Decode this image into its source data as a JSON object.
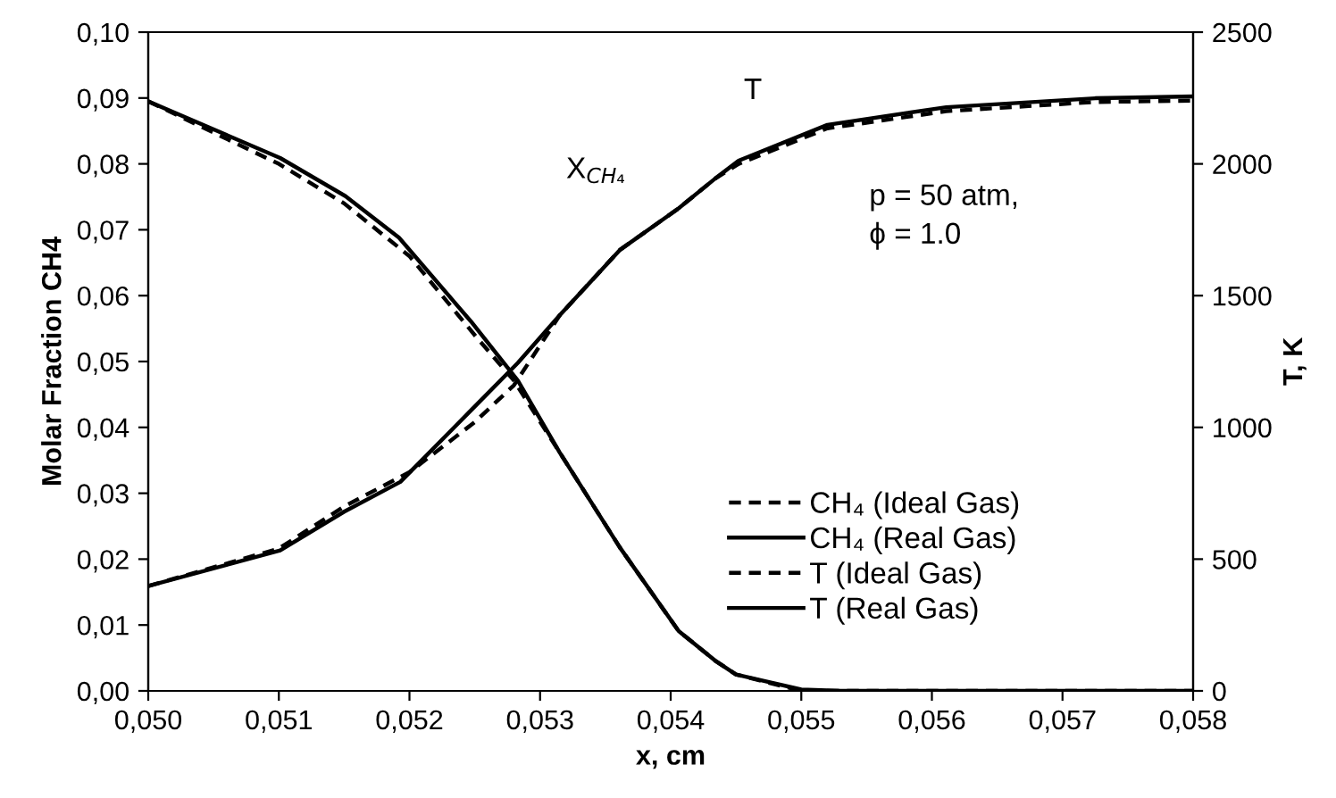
{
  "chart_data": {
    "type": "line",
    "xlabel": "x, cm",
    "ylabel": "Molar Fraction CH4",
    "y2label": "T, K",
    "annotations": [
      "X$_{CH₄}$",
      "T",
      "p = 50 atm,\nϕ = 1.0"
    ],
    "xlim": [
      0.05,
      0.058
    ],
    "xticks": [
      {
        "value": 0.05,
        "label": "0,050"
      },
      {
        "value": 0.051,
        "label": "0,051"
      },
      {
        "value": 0.052,
        "label": "0,052"
      },
      {
        "value": 0.053,
        "label": "0,053"
      },
      {
        "value": 0.054,
        "label": "0,054"
      },
      {
        "value": 0.055,
        "label": "0,055"
      },
      {
        "value": 0.056,
        "label": "0,056"
      },
      {
        "value": 0.057,
        "label": "0,057"
      },
      {
        "value": 0.058,
        "label": "0,058"
      }
    ],
    "ylim": [
      0,
      0.1
    ],
    "yticks": [
      {
        "value": 0,
        "label": "0,00"
      },
      {
        "value": 0.01,
        "label": "0,01"
      },
      {
        "value": 0.02,
        "label": "0,02"
      },
      {
        "value": 0.03,
        "label": "0,03"
      },
      {
        "value": 0.04,
        "label": "0,04"
      },
      {
        "value": 0.05,
        "label": "0,05"
      },
      {
        "value": 0.06,
        "label": "0,06"
      },
      {
        "value": 0.07,
        "label": "0,07"
      },
      {
        "value": 0.08,
        "label": "0,08"
      },
      {
        "value": 0.09,
        "label": "0,09"
      },
      {
        "value": 0.1,
        "label": "0,10"
      }
    ],
    "y2lim": [
      0,
      2500
    ],
    "y2ticks": [
      0,
      500,
      1000,
      1500,
      2000,
      2500
    ],
    "grid": false,
    "legend": "bottom right",
    "series": [
      {
        "name": "CH₄ (Ideal Gas)",
        "color": "#000000",
        "line_style": "dashed",
        "x": [
          0.05,
          0.051,
          0.0515,
          0.052,
          0.0525,
          0.0528,
          0.05315,
          0.05361,
          0.05406,
          0.05434,
          0.0545,
          0.055,
          0.0553,
          0.058
        ],
        "values": [
          0.0895,
          0.08,
          0.074,
          0.066,
          0.054,
          0.0471,
          0.0362,
          0.0218,
          0.0091,
          0.0046,
          0.0025,
          0.0,
          0.0,
          0.0
        ]
      },
      {
        "name": "CH₄ (Real Gas)",
        "color": "#000000",
        "line_style": "solid",
        "x": [
          0.05,
          0.05101,
          0.05151,
          0.05192,
          0.05247,
          0.05283,
          0.05315,
          0.05361,
          0.05406,
          0.05434,
          0.0545,
          0.055,
          0.0553,
          0.058
        ],
        "values": [
          0.0895,
          0.0809,
          0.0751,
          0.0688,
          0.0561,
          0.0471,
          0.0362,
          0.0218,
          0.0091,
          0.0046,
          0.0025,
          0.0002,
          0.0,
          0.0
        ]
      },
      {
        "name": "T (Ideal Gas)",
        "color": "#000000",
        "line_style": "dashed",
        "axis": "y2",
        "x": [
          0.05,
          0.051,
          0.0515,
          0.052,
          0.0525,
          0.0528,
          0.05315,
          0.05361,
          0.05406,
          0.05434,
          0.05452,
          0.0552,
          0.05611,
          0.05725,
          0.058
        ],
        "values": [
          398,
          540,
          700,
          830,
          1020,
          1160,
          1425,
          1673,
          1831,
          1944,
          2000,
          2135,
          2200,
          2235,
          2240
        ]
      },
      {
        "name": "T (Real Gas)",
        "color": "#000000",
        "line_style": "solid",
        "axis": "y2",
        "x": [
          0.05,
          0.05101,
          0.0515,
          0.05193,
          0.05247,
          0.05283,
          0.05315,
          0.05361,
          0.05406,
          0.05434,
          0.05452,
          0.0552,
          0.05611,
          0.05725,
          0.058
        ],
        "values": [
          398,
          533,
          680,
          793,
          1064,
          1245,
          1425,
          1673,
          1831,
          1944,
          2012,
          2148,
          2215,
          2249,
          2256
        ]
      }
    ]
  }
}
